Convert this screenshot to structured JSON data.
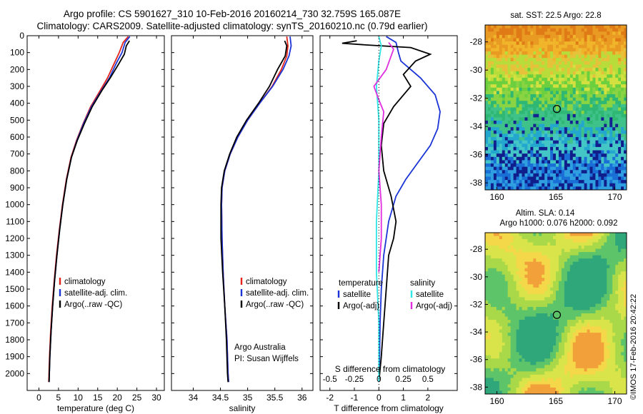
{
  "header": {
    "line1": "Argo profile: CS 5901627_310 10-Feb-2016 20160214_730 32.759S 165.087E",
    "line2": "Climatology: CARS2009. Satellite-adjusted climatology: synTS_20160210.nc (0.79d earlier)"
  },
  "credit": "©IMOS 17-Feb-2016 20:42:22",
  "colors": {
    "red": "#e2231a",
    "blue": "#1a34d6",
    "black": "#000000",
    "cyan": "#2fe6e6",
    "magenta": "#e02de0"
  },
  "chart_data": [
    {
      "type": "line",
      "id": "temperature",
      "xlabel": "temperature (deg C)",
      "ylabel": "",
      "xlim": [
        -3,
        32
      ],
      "ylim": [
        2100,
        0
      ],
      "xticks": [
        "0",
        "5",
        "10",
        "15",
        "20",
        "25",
        "30"
      ],
      "yticks": [
        "0",
        "100",
        "200",
        "300",
        "400",
        "500",
        "600",
        "700",
        "800",
        "900",
        "1000",
        "1100",
        "1200",
        "1300",
        "1400",
        "1500",
        "1600",
        "1700",
        "1800",
        "1900",
        "2000"
      ],
      "legend": [
        "climatology",
        "satellite-adj. clim.",
        "Argo(..raw -QC)"
      ],
      "series": [
        {
          "name": "climatology",
          "color": "red",
          "points": [
            [
              22.8,
              5
            ],
            [
              21.5,
              40
            ],
            [
              20.5,
              100
            ],
            [
              19.3,
              160
            ],
            [
              17.5,
              250
            ],
            [
              15.5,
              330
            ],
            [
              13.2,
              420
            ],
            [
              11.3,
              520
            ],
            [
              9.6,
              620
            ],
            [
              8.2,
              720
            ],
            [
              7,
              850
            ],
            [
              6,
              1000
            ],
            [
              5.2,
              1150
            ],
            [
              4.5,
              1300
            ],
            [
              3.9,
              1450
            ],
            [
              3.4,
              1600
            ],
            [
              3,
              1750
            ],
            [
              2.7,
              1900
            ],
            [
              2.5,
              2050
            ]
          ]
        },
        {
          "name": "satellite-adj. clim.",
          "color": "blue",
          "points": [
            [
              23.2,
              5
            ],
            [
              22,
              40
            ],
            [
              21.2,
              100
            ],
            [
              19.8,
              160
            ],
            [
              18,
              250
            ],
            [
              15.8,
              330
            ],
            [
              13.4,
              420
            ],
            [
              11.4,
              520
            ],
            [
              9.7,
              620
            ],
            [
              8.3,
              720
            ],
            [
              7.1,
              850
            ],
            [
              6.1,
              1000
            ],
            [
              5.3,
              1150
            ],
            [
              4.6,
              1300
            ],
            [
              4,
              1450
            ],
            [
              3.5,
              1600
            ],
            [
              3.1,
              1750
            ],
            [
              2.8,
              1900
            ],
            [
              2.6,
              2050
            ]
          ]
        },
        {
          "name": "Argo(..raw -QC)",
          "color": "black",
          "points": [
            [
              23.1,
              30
            ],
            [
              22.3,
              60
            ],
            [
              21.8,
              110
            ],
            [
              20.3,
              170
            ],
            [
              18.2,
              250
            ],
            [
              16.2,
              320
            ],
            [
              13.6,
              420
            ],
            [
              11.6,
              520
            ],
            [
              9.8,
              620
            ],
            [
              8.3,
              720
            ],
            [
              7.1,
              850
            ],
            [
              6.1,
              1000
            ],
            [
              5.3,
              1150
            ],
            [
              4.6,
              1300
            ],
            [
              4,
              1450
            ],
            [
              3.5,
              1600
            ],
            [
              3.1,
              1750
            ],
            [
              2.8,
              1900
            ],
            [
              2.6,
              2050
            ]
          ]
        }
      ]
    },
    {
      "type": "line",
      "id": "salinity",
      "xlabel": "salinity",
      "xlim": [
        33.6,
        36.2
      ],
      "ylim": [
        2100,
        0
      ],
      "xticks": [
        "34",
        "34.5",
        "35",
        "35.5",
        "36"
      ],
      "legend": [
        "climatology",
        "satellite-adj. clim.",
        "Argo(..raw -QC)"
      ],
      "annotation": [
        "Argo Australia",
        "PI: Susan Wijffels"
      ],
      "series": [
        {
          "name": "climatology",
          "color": "red",
          "points": [
            [
              35.72,
              5
            ],
            [
              35.74,
              60
            ],
            [
              35.72,
              120
            ],
            [
              35.62,
              200
            ],
            [
              35.45,
              300
            ],
            [
              35.22,
              400
            ],
            [
              35,
              500
            ],
            [
              34.82,
              600
            ],
            [
              34.68,
              700
            ],
            [
              34.58,
              800
            ],
            [
              34.53,
              900
            ],
            [
              34.52,
              1000
            ],
            [
              34.53,
              1200
            ],
            [
              34.55,
              1400
            ],
            [
              34.58,
              1600
            ],
            [
              34.62,
              1800
            ],
            [
              34.64,
              2000
            ],
            [
              34.65,
              2050
            ]
          ]
        },
        {
          "name": "satellite-adj. clim.",
          "color": "blue",
          "points": [
            [
              35.78,
              5
            ],
            [
              35.8,
              60
            ],
            [
              35.76,
              120
            ],
            [
              35.65,
              200
            ],
            [
              35.46,
              300
            ],
            [
              35.22,
              400
            ],
            [
              35,
              500
            ],
            [
              34.82,
              600
            ],
            [
              34.68,
              700
            ],
            [
              34.58,
              800
            ],
            [
              34.53,
              900
            ],
            [
              34.52,
              1000
            ],
            [
              34.53,
              1200
            ],
            [
              34.55,
              1400
            ],
            [
              34.58,
              1600
            ],
            [
              34.62,
              1800
            ],
            [
              34.64,
              2000
            ],
            [
              34.65,
              2050
            ]
          ]
        },
        {
          "name": "Argo(..raw -QC)",
          "color": "black",
          "points": [
            [
              35.68,
              30
            ],
            [
              35.72,
              60
            ],
            [
              35.69,
              120
            ],
            [
              35.55,
              200
            ],
            [
              35.4,
              300
            ],
            [
              35.2,
              400
            ],
            [
              34.98,
              500
            ],
            [
              34.8,
              600
            ],
            [
              34.67,
              700
            ],
            [
              34.57,
              800
            ],
            [
              34.52,
              900
            ],
            [
              34.51,
              1000
            ],
            [
              34.51,
              1200
            ],
            [
              34.54,
              1400
            ],
            [
              34.58,
              1600
            ],
            [
              34.61,
              1800
            ],
            [
              34.63,
              2000
            ],
            [
              34.64,
              2050
            ]
          ]
        }
      ]
    },
    {
      "type": "line",
      "id": "difference",
      "xlabel": "T difference from climatology",
      "xlabel_top": "S difference from climatology",
      "xlim": [
        -2.4,
        3.2
      ],
      "ylim": [
        2100,
        0
      ],
      "xticks": [
        "-2",
        "-1",
        "0",
        "1",
        "2"
      ],
      "xticks_s": [
        "-0.5",
        "-0.25",
        "0",
        "0.25",
        "0.5"
      ],
      "legend_t_title": "temperature",
      "legend_s_title": "salinity",
      "legend_t": [
        "satellite",
        "Argo(-adj)"
      ],
      "legend_s": [
        "satellite",
        "Argo(-adj)"
      ],
      "series": [
        {
          "name": "satellite",
          "color": "blue",
          "points": [
            [
              0.3,
              5
            ],
            [
              0.7,
              40
            ],
            [
              0.8,
              100
            ],
            [
              0.9,
              150
            ],
            [
              1.7,
              250
            ],
            [
              2.3,
              350
            ],
            [
              2.5,
              450
            ],
            [
              2.4,
              550
            ],
            [
              2.1,
              650
            ],
            [
              1.6,
              750
            ],
            [
              1.1,
              850
            ],
            [
              0.7,
              950
            ],
            [
              0.4,
              1100
            ],
            [
              0.2,
              1300
            ],
            [
              0.1,
              1500
            ],
            [
              0.05,
              1700
            ],
            [
              0.03,
              1900
            ],
            [
              0,
              2050
            ]
          ]
        },
        {
          "name": "Argo(-adj)",
          "color": "black",
          "points": [
            [
              -0.9,
              30
            ],
            [
              -1.5,
              45
            ],
            [
              -0.5,
              55
            ],
            [
              1.3,
              70
            ],
            [
              2.1,
              110
            ],
            [
              1.5,
              150
            ],
            [
              1,
              230
            ],
            [
              1.3,
              300
            ],
            [
              0.6,
              420
            ],
            [
              0.2,
              520
            ],
            [
              0.1,
              650
            ],
            [
              0.2,
              800
            ],
            [
              0.5,
              950
            ],
            [
              0.7,
              1100
            ],
            [
              0.6,
              1200
            ],
            [
              0.4,
              1300
            ],
            [
              0.3,
              1500
            ],
            [
              0.2,
              1700
            ],
            [
              0.1,
              1900
            ],
            [
              0,
              2050
            ]
          ]
        },
        {
          "name": "satellite (S)",
          "color": "cyan",
          "points": [
            [
              0,
              5
            ],
            [
              0.1,
              60
            ],
            [
              0,
              150
            ],
            [
              -0.1,
              300
            ],
            [
              0,
              500
            ],
            [
              0,
              800
            ],
            [
              -0.1,
              1100
            ],
            [
              -0.1,
              1400
            ],
            [
              0,
              1700
            ],
            [
              0,
              2050
            ]
          ]
        },
        {
          "name": "Argo(-adj) (S)",
          "color": "magenta",
          "points": [
            [
              0.4,
              40
            ],
            [
              0.6,
              80
            ],
            [
              0.3,
              200
            ],
            [
              -0.2,
              300
            ],
            [
              0,
              380
            ],
            [
              0.2,
              450
            ],
            [
              0.1,
              600
            ],
            [
              0,
              800
            ],
            [
              0.1,
              1000
            ],
            [
              0.1,
              1200
            ],
            [
              0,
              1400
            ]
          ]
        }
      ]
    },
    {
      "type": "heatmap",
      "id": "sst_map",
      "title": "sat. SST: 22.5  Argo: 22.8",
      "xticks": [
        "160",
        "165",
        "170"
      ],
      "yticks": [
        "-28",
        "-30",
        "-32",
        "-34",
        "-36",
        "-38"
      ],
      "xlim": [
        159,
        171
      ],
      "ylim": [
        -38.5,
        -26.8
      ],
      "marker": [
        165.087,
        -32.759
      ]
    },
    {
      "type": "heatmap",
      "id": "sla_map",
      "title": "Altim. SLA: 0.14",
      "subtitle": "Argo h1000: 0.076 h2000: 0.092",
      "xticks": [
        "160",
        "165",
        "170"
      ],
      "yticks": [
        "-28",
        "-30",
        "-32",
        "-34",
        "-36",
        "-38"
      ],
      "xlim": [
        159,
        171
      ],
      "ylim": [
        -38.5,
        -26.8
      ],
      "marker": [
        165.087,
        -32.759
      ]
    }
  ]
}
